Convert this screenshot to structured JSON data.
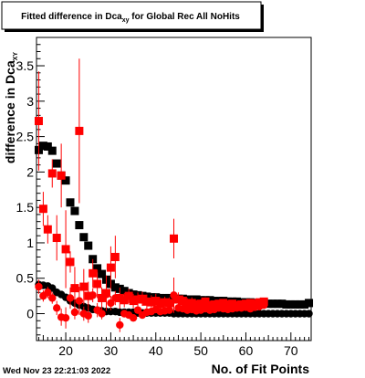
{
  "footer": {
    "timestamp": "Wed Nov 23 22:21:03 2022"
  },
  "colors": {
    "series_black": "#000000",
    "series_red": "#ff0000"
  },
  "chart_data": {
    "type": "scatter",
    "title": {
      "text": "Fitted difference in Dca",
      "sub": "xy",
      "suffix": " for Global Rec All NoHits"
    },
    "xlabel": "No. of Fit Points",
    "ylabel": {
      "text": "difference in Dca",
      "sub": "XY"
    },
    "xlim": [
      13.5,
      74.5
    ],
    "ylim": [
      -0.38,
      3.9
    ],
    "xticks": [
      20,
      30,
      40,
      50,
      60,
      70
    ],
    "yticks": [
      0,
      0.5,
      1,
      1.5,
      2,
      2.5,
      3,
      3.5
    ],
    "ytick_labels": [
      "0",
      "0.5",
      "1",
      "1.5",
      "2",
      "2.5",
      "3",
      "3.5"
    ],
    "grid": false,
    "series": [
      {
        "color": "#000000",
        "marker": "square",
        "x": [
          14,
          15,
          16,
          17,
          18,
          19,
          20,
          21,
          22,
          23,
          24,
          25,
          26,
          27,
          28,
          29,
          30,
          31,
          32,
          33,
          34,
          35,
          36,
          37,
          38,
          39,
          40,
          41,
          42,
          43,
          44,
          45,
          46,
          47,
          48,
          49,
          50,
          51,
          52,
          53,
          54,
          55,
          56,
          57,
          58,
          59,
          60,
          61,
          62,
          63,
          64,
          65,
          66,
          67,
          68,
          69,
          70,
          71,
          72,
          73,
          74
        ],
        "y": [
          2.31,
          2.37,
          2.36,
          2.3,
          2.12,
          1.95,
          1.88,
          1.57,
          1.45,
          1.25,
          1.08,
          0.96,
          0.77,
          0.64,
          0.56,
          0.48,
          0.42,
          0.37,
          0.35,
          0.32,
          0.29,
          0.27,
          0.26,
          0.25,
          0.24,
          0.23,
          0.23,
          0.22,
          0.22,
          0.22,
          0.21,
          0.21,
          0.21,
          0.2,
          0.2,
          0.2,
          0.19,
          0.19,
          0.19,
          0.18,
          0.18,
          0.18,
          0.17,
          0.17,
          0.17,
          0.16,
          0.16,
          0.16,
          0.15,
          0.15,
          0.15,
          0.14,
          0.14,
          0.14,
          0.14,
          0.13,
          0.13,
          0.13,
          0.13,
          0.13,
          0.15
        ],
        "yerr": [
          0.06,
          0.05,
          0.05,
          0.05,
          0.04,
          0.04,
          0.04,
          0.04,
          0.03,
          0.03,
          0.03,
          0.03,
          0.02,
          0.02,
          0.02,
          0.02,
          0.02,
          0.02,
          0.02,
          0.01,
          0.01,
          0.01,
          0.01,
          0.01,
          0.01,
          0.01,
          0.01,
          0.01,
          0.01,
          0.01,
          0.01,
          0.01,
          0.01,
          0.01,
          0.01,
          0.01,
          0.01,
          0.01,
          0.01,
          0.01,
          0.01,
          0.01,
          0.01,
          0.01,
          0.01,
          0.01,
          0.01,
          0.01,
          0.01,
          0.01,
          0.01,
          0.01,
          0.01,
          0.01,
          0.01,
          0.01,
          0.01,
          0.01,
          0.01,
          0.01,
          0.01
        ]
      },
      {
        "color": "#000000",
        "marker": "circle",
        "x": [
          14,
          15,
          16,
          17,
          18,
          19,
          20,
          21,
          22,
          23,
          24,
          25,
          26,
          27,
          28,
          29,
          30,
          31,
          32,
          33,
          34,
          35,
          36,
          37,
          38,
          39,
          40,
          41,
          42,
          43,
          44,
          45,
          46,
          47,
          48,
          49,
          50,
          51,
          52,
          53,
          54,
          55,
          56,
          57,
          58,
          59,
          60,
          61,
          62,
          63,
          64,
          65,
          66,
          67,
          68,
          69,
          70,
          71,
          72,
          73,
          74
        ],
        "y": [
          0.41,
          0.4,
          0.39,
          0.36,
          0.3,
          0.27,
          0.23,
          0.18,
          0.15,
          0.12,
          0.1,
          0.08,
          0.06,
          0.05,
          0.04,
          0.03,
          0.03,
          0.03,
          0.02,
          0.02,
          0.02,
          0.02,
          0.01,
          0.01,
          0.01,
          0.01,
          0.01,
          0.01,
          0.01,
          0.01,
          0.0,
          0.0,
          0.0,
          0.0,
          0.0,
          0.0,
          0.0,
          0.0,
          0.0,
          0.0,
          0.0,
          0.0,
          0.0,
          0.0,
          0.0,
          0.0,
          0.0,
          0.0,
          0.0,
          0.0,
          0.0,
          0.0,
          0.0,
          0.0,
          0.0,
          0.0,
          0.0,
          0.0,
          0.0,
          0.0,
          0.0
        ],
        "yerr": [
          0.02,
          0.02,
          0.02,
          0.02,
          0.02,
          0.02,
          0.01,
          0.01,
          0.01,
          0.01,
          0.01,
          0.01,
          0.01,
          0.01,
          0.01,
          0.01,
          0.01,
          0.01,
          0.01,
          0.01,
          0.01,
          0.01,
          0.01,
          0.01,
          0.01,
          0.01,
          0.01,
          0.01,
          0.01,
          0.01,
          0.01,
          0.01,
          0.01,
          0.01,
          0.01,
          0.01,
          0.01,
          0.01,
          0.01,
          0.01,
          0.01,
          0.01,
          0.01,
          0.01,
          0.01,
          0.01,
          0.01,
          0.01,
          0.01,
          0.01,
          0.01,
          0.01,
          0.01,
          0.01,
          0.01,
          0.01,
          0.01,
          0.01,
          0.01,
          0.01,
          0.01
        ]
      },
      {
        "color": "#ff0000",
        "marker": "square",
        "x": [
          14,
          15,
          16,
          17,
          18,
          19,
          20,
          21,
          22,
          23,
          24,
          25,
          26,
          27,
          28,
          29,
          30,
          31,
          32,
          33,
          34,
          35,
          36,
          37,
          38,
          39,
          40,
          41,
          42,
          43,
          44,
          45,
          46,
          47,
          48,
          49,
          50,
          51,
          52,
          53,
          54,
          55,
          56,
          57,
          58,
          59,
          60,
          61,
          62,
          63,
          64
        ],
        "y": [
          2.72,
          1.48,
          1.19,
          1.98,
          1.07,
          1.95,
          0.91,
          0.73,
          0.36,
          2.58,
          0.38,
          0.25,
          0.57,
          0.42,
          0.22,
          0.29,
          0.65,
          0.8,
          0.22,
          0.19,
          0.25,
          0.18,
          0.2,
          0.21,
          0.17,
          0.16,
          0.18,
          0.14,
          0.16,
          0.15,
          1.06,
          0.2,
          0.18,
          0.14,
          0.15,
          0.13,
          0.14,
          0.17,
          0.12,
          0.13,
          0.14,
          0.15,
          0.13,
          0.14,
          0.12,
          0.13,
          0.14,
          0.15,
          0.14,
          0.16,
          0.17
        ],
        "yerr": [
          0.7,
          0.24,
          0.2,
          0.2,
          0.32,
          0.45,
          0.55,
          0.15,
          0.3,
          1.02,
          0.25,
          0.2,
          0.2,
          0.2,
          0.15,
          0.25,
          0.3,
          0.3,
          0.15,
          0.1,
          0.1,
          0.1,
          0.1,
          0.1,
          0.1,
          0.1,
          0.1,
          0.08,
          0.08,
          0.08,
          0.28,
          0.1,
          0.08,
          0.08,
          0.08,
          0.06,
          0.06,
          0.06,
          0.05,
          0.05,
          0.05,
          0.05,
          0.05,
          0.05,
          0.05,
          0.05,
          0.05,
          0.05,
          0.05,
          0.05,
          0.05
        ]
      },
      {
        "color": "#ff0000",
        "marker": "circle",
        "x": [
          14,
          15,
          16,
          17,
          18,
          19,
          20,
          21,
          22,
          23,
          24,
          25,
          26,
          27,
          28,
          29,
          30,
          31,
          32,
          33,
          34,
          35,
          36,
          37,
          38,
          39,
          40,
          41,
          42,
          43,
          44,
          45,
          46,
          47,
          48,
          49,
          50,
          51,
          52,
          53,
          54,
          55,
          56,
          57,
          58,
          59,
          60,
          61,
          62,
          63,
          64
        ],
        "y": [
          0.38,
          0.25,
          0.3,
          0.22,
          0.08,
          -0.05,
          -0.06,
          0.22,
          0.02,
          0.18,
          0.0,
          -0.03,
          0.26,
          0.05,
          0.0,
          0.27,
          0.15,
          0.22,
          -0.16,
          0.0,
          -0.02,
          -0.06,
          0.05,
          -0.02,
          0.02,
          0.03,
          0.06,
          0.03,
          0.04,
          0.05,
          0.26,
          0.08,
          0.07,
          0.05,
          0.06,
          0.04,
          0.05,
          0.07,
          0.05,
          0.06,
          0.08,
          0.07,
          0.06,
          0.07,
          0.08,
          0.08,
          0.09,
          0.07,
          0.09,
          0.1,
          0.12
        ],
        "yerr": [
          0.1,
          0.08,
          0.08,
          0.08,
          0.1,
          0.12,
          0.15,
          0.15,
          0.1,
          0.2,
          0.1,
          0.1,
          0.1,
          0.1,
          0.08,
          0.1,
          0.1,
          0.1,
          0.1,
          0.05,
          0.05,
          0.05,
          0.05,
          0.05,
          0.05,
          0.05,
          0.05,
          0.04,
          0.04,
          0.04,
          0.25,
          0.05,
          0.04,
          0.04,
          0.04,
          0.03,
          0.03,
          0.03,
          0.03,
          0.03,
          0.03,
          0.03,
          0.03,
          0.03,
          0.03,
          0.03,
          0.03,
          0.03,
          0.03,
          0.03,
          0.03
        ]
      }
    ]
  }
}
